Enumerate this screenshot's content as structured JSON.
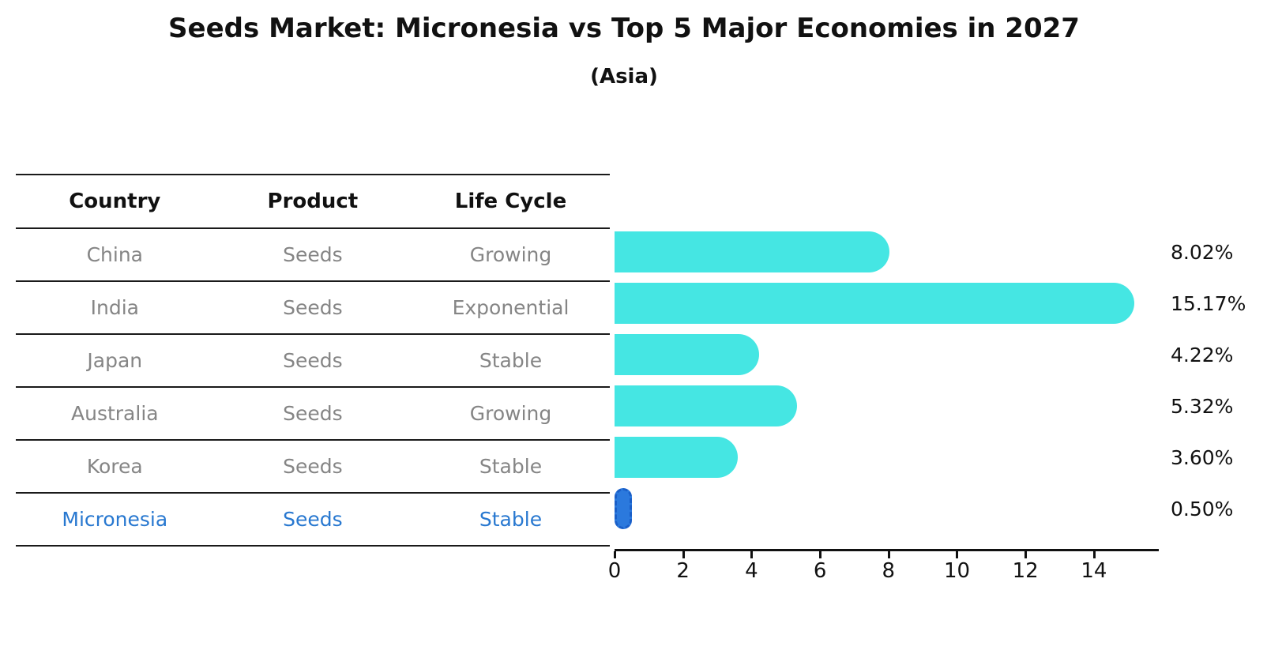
{
  "title": "Seeds Market: Micronesia vs Top 5 Major Economies in 2027",
  "subtitle": "(Asia)",
  "table": {
    "headers": [
      "Country",
      "Product",
      "Life Cycle"
    ],
    "rows": [
      {
        "country": "China",
        "product": "Seeds",
        "life_cycle": "Growing",
        "highlight": false
      },
      {
        "country": "India",
        "product": "Seeds",
        "life_cycle": "Exponential",
        "highlight": false
      },
      {
        "country": "Japan",
        "product": "Seeds",
        "life_cycle": "Stable",
        "highlight": false
      },
      {
        "country": "Australia",
        "product": "Seeds",
        "life_cycle": "Growing",
        "highlight": false
      },
      {
        "country": "Korea",
        "product": "Seeds",
        "life_cycle": "Stable",
        "highlight": false
      },
      {
        "country": "Micronesia",
        "product": "Seeds",
        "life_cycle": "Stable",
        "highlight": true
      }
    ]
  },
  "chart_data": {
    "type": "bar",
    "orientation": "horizontal",
    "title": "Seeds Market: Micronesia vs Top 5 Major Economies in 2027",
    "subtitle": "(Asia)",
    "categories": [
      "China",
      "India",
      "Japan",
      "Australia",
      "Korea",
      "Micronesia"
    ],
    "values": [
      8.02,
      15.17,
      4.22,
      5.32,
      3.6,
      0.5
    ],
    "value_labels": [
      "8.02%",
      "15.17%",
      "4.22%",
      "5.32%",
      "3.60%",
      "0.50%"
    ],
    "x_ticks": [
      "0",
      "2",
      "4",
      "6",
      "8",
      "10",
      "12",
      "14"
    ],
    "xlim": [
      0,
      15.9
    ],
    "grid": false,
    "legend": "none",
    "bar_color": "#45e6e3",
    "highlight_index": 5,
    "highlight_bar_color": "#2b79dd",
    "highlight_border_color": "#1a5fc8",
    "highlight_text_color": "#2878d0"
  }
}
